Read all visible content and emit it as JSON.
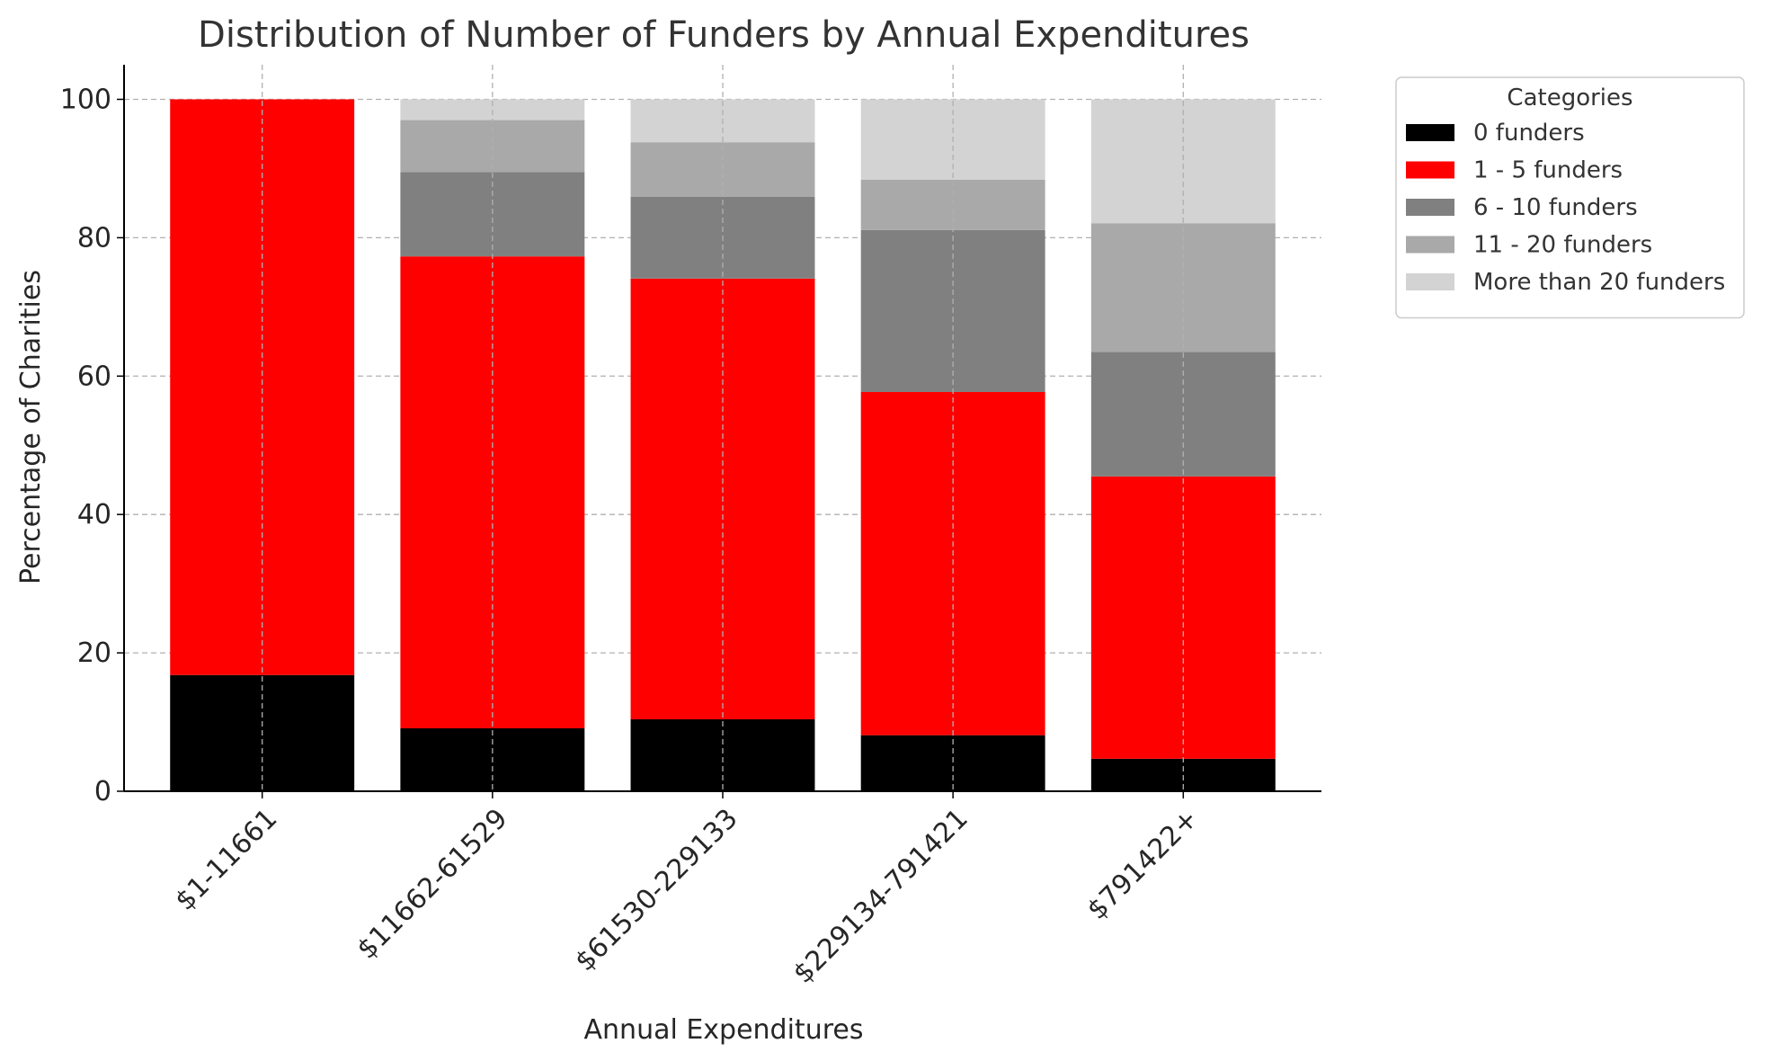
{
  "chart_data": {
    "type": "bar",
    "stacked": true,
    "title": "Distribution of Number of Funders by Annual Expenditures",
    "xlabel": "Annual Expenditures",
    "ylabel": "Percentage of Charities",
    "ylim": [
      0,
      105
    ],
    "yticks": [
      0,
      20,
      40,
      60,
      80,
      100
    ],
    "grid": true,
    "categories": [
      "$1-11661",
      "$11662-61529",
      "$61530-229133",
      "$229134-791421",
      "$791422+"
    ],
    "series": [
      {
        "name": "0 funders",
        "color": "#000000",
        "values": [
          16.8,
          9.1,
          10.4,
          8.1,
          4.7
        ]
      },
      {
        "name": "1 - 5 funders",
        "color": "#ff0000",
        "values": [
          83.2,
          68.2,
          63.7,
          49.6,
          40.8
        ]
      },
      {
        "name": "6 - 10 funders",
        "color": "#808080",
        "values": [
          0.0,
          12.2,
          11.8,
          23.4,
          18.0
        ]
      },
      {
        "name": "11 - 20 funders",
        "color": "#a9a9a9",
        "values": [
          0.0,
          7.5,
          7.9,
          7.3,
          18.6
        ]
      },
      {
        "name": "More than 20 funders",
        "color": "#d3d3d3",
        "values": [
          0.0,
          3.0,
          6.2,
          11.6,
          17.9
        ]
      }
    ],
    "legend": {
      "title": "Categories",
      "position": "outside-top-right"
    }
  }
}
